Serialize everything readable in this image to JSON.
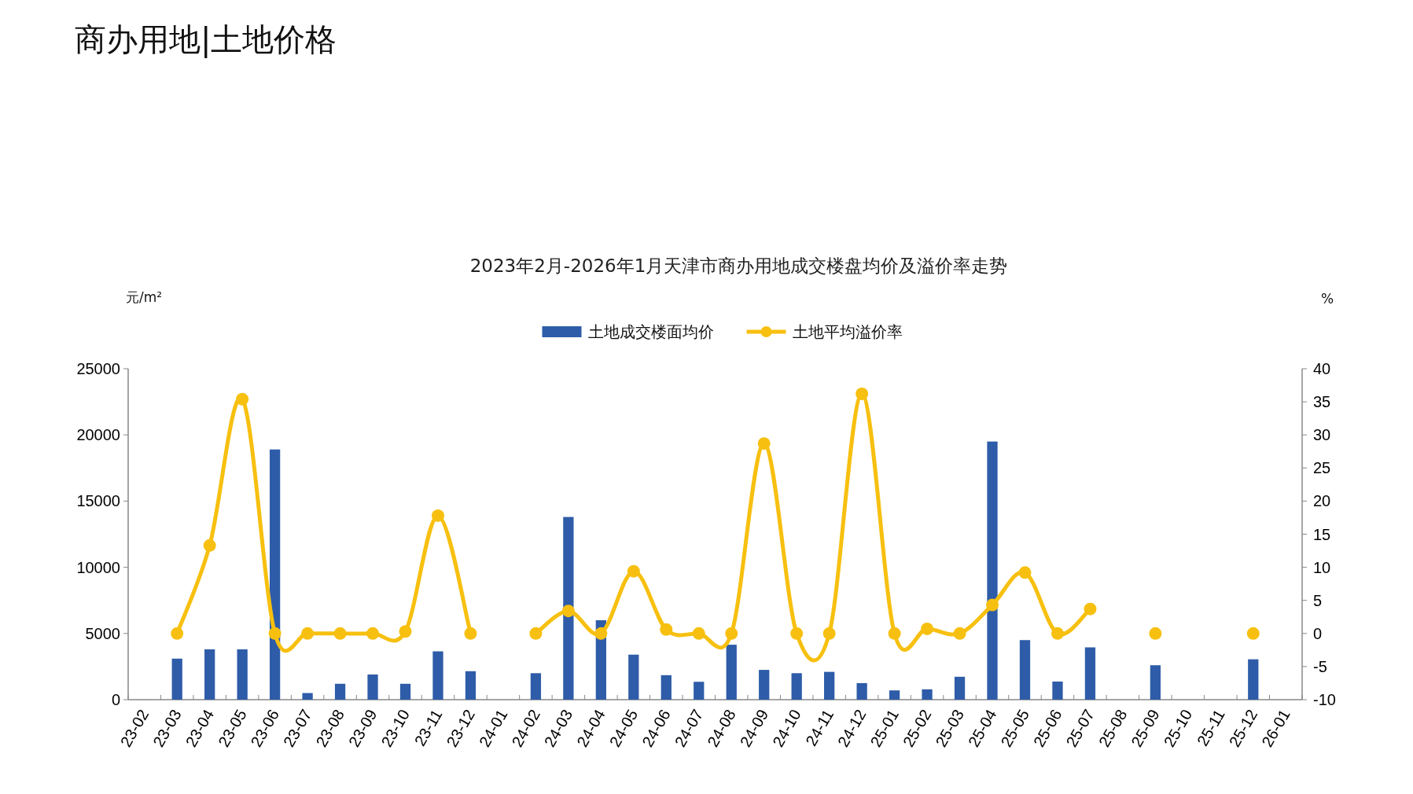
{
  "chart_data": {
    "type": "bar",
    "title": "商办用地|土地价格",
    "subtitle": "2023年2月-2026年1月天津市商办用地成交楼盘均价及溢价率走势",
    "ylabel": "元/m²",
    "y2label": "%",
    "categories": [
      "23-02",
      "23-03",
      "23-04",
      "23-05",
      "23-06",
      "23-07",
      "23-08",
      "23-09",
      "23-10",
      "23-11",
      "23-12",
      "24-01",
      "24-02",
      "24-03",
      "24-04",
      "24-05",
      "24-06",
      "24-07",
      "24-08",
      "24-09",
      "24-10",
      "24-11",
      "24-12",
      "25-01",
      "25-02",
      "25-03",
      "25-04",
      "25-05",
      "25-06",
      "25-07",
      "25-08",
      "25-09",
      "25-10",
      "25-11",
      "25-12",
      "26-01"
    ],
    "series": [
      {
        "name": "土地成交楼面均价",
        "axis": "y",
        "color": "#2e5ca8",
        "values": [
          null,
          3100,
          3800,
          3800,
          18900,
          500,
          1200,
          1900,
          1200,
          3650,
          2150,
          null,
          2000,
          13800,
          6000,
          3400,
          1850,
          1350,
          4150,
          2250,
          2000,
          2100,
          1250,
          700,
          780,
          1730,
          19500,
          4500,
          1370,
          3950,
          null,
          2600,
          null,
          null,
          3050,
          null
        ]
      },
      {
        "name": "土地平均溢价率",
        "type": "line",
        "axis": "y2",
        "color": "#f7c010",
        "marker": "circle",
        "values": [
          null,
          0,
          13.3,
          35.4,
          0,
          0,
          0,
          0,
          0.3,
          17.8,
          0,
          null,
          0,
          3.4,
          0,
          9.4,
          0.6,
          0,
          0,
          28.7,
          0,
          0,
          36.2,
          0,
          0.7,
          0,
          4.3,
          9.2,
          0,
          3.7,
          null,
          0,
          null,
          null,
          0,
          null
        ]
      }
    ],
    "ylim": [
      0,
      25000
    ],
    "yticks": [
      0,
      5000,
      10000,
      15000,
      20000,
      25000
    ],
    "y2lim": [
      -10,
      40
    ],
    "y2ticks": [
      -10,
      -5,
      0,
      5,
      10,
      15,
      20,
      25,
      30,
      35,
      40
    ],
    "legend": "top",
    "grid": false
  }
}
